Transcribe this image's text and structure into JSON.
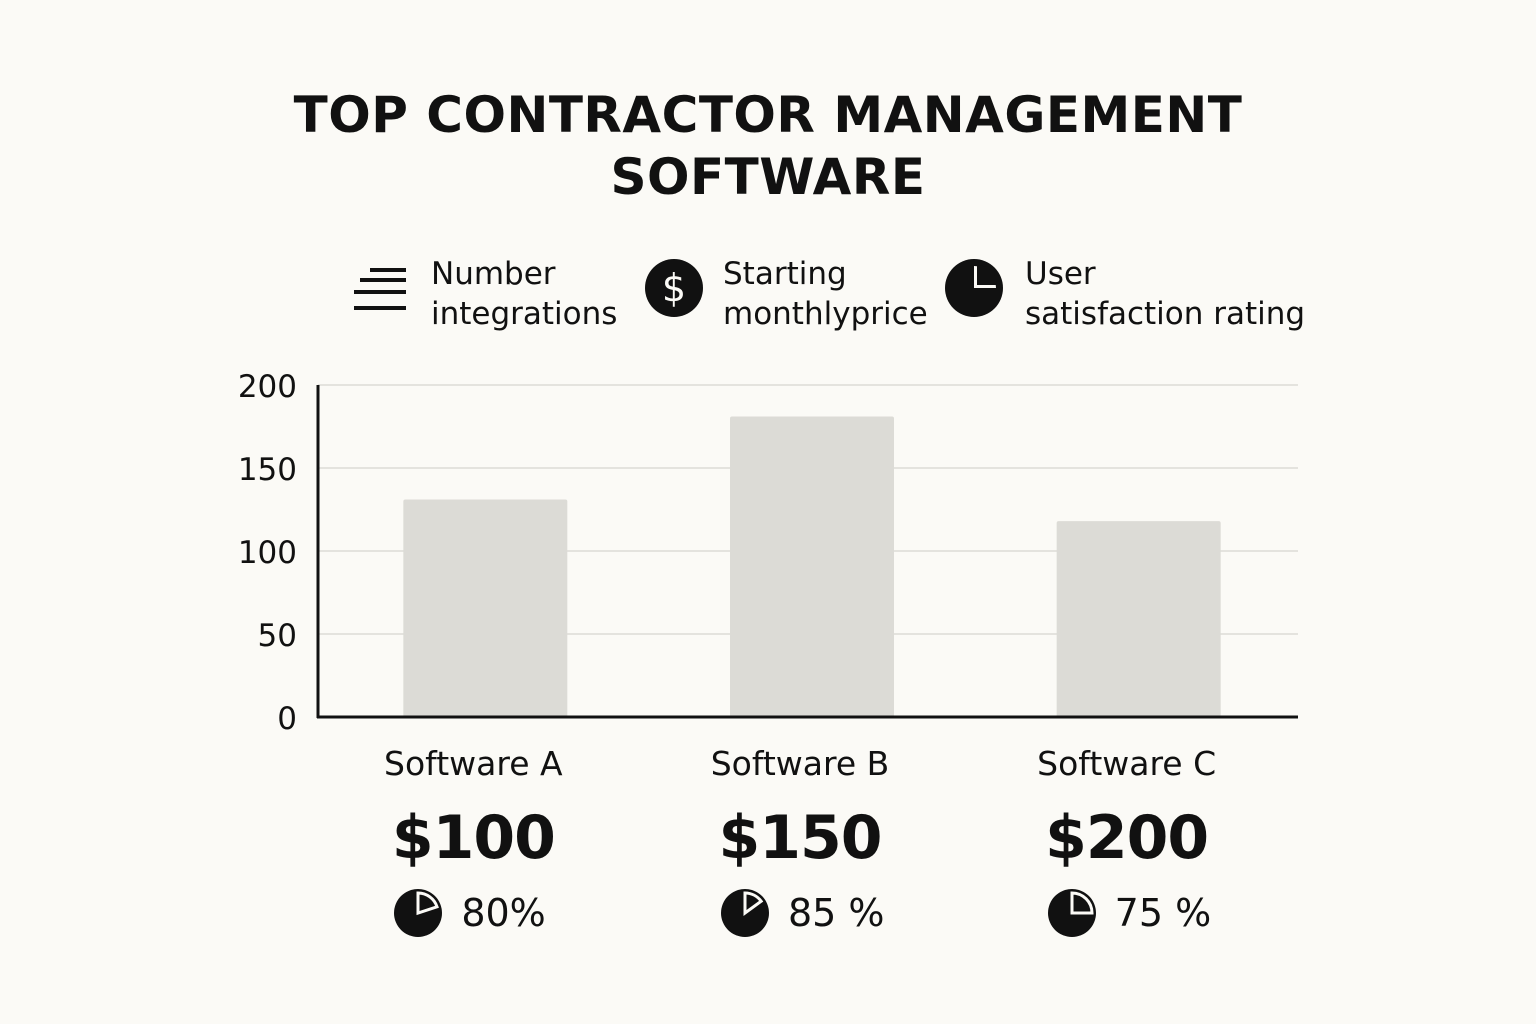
{
  "title_line1": "TOP CONTRACTOR MANAGEMENT",
  "title_line2": "SOFTWARE",
  "legend": [
    {
      "icon": "lines-icon",
      "line1": "Number",
      "line2": "integrations"
    },
    {
      "icon": "dollar-icon",
      "line1": "Starting",
      "line2": "monthlyprice"
    },
    {
      "icon": "pie-icon",
      "line1": "User",
      "line2": "satisfaction rating"
    }
  ],
  "colors": {
    "bar": "#dcdbd6",
    "grid": "#e4e3de",
    "axis": "#111111",
    "background": "#fbfaf6"
  },
  "chart_data": {
    "type": "bar",
    "categories": [
      "Software A",
      "Software B",
      "Software C"
    ],
    "values": [
      131,
      181,
      118
    ],
    "ylim": [
      0,
      200
    ],
    "yticks": [
      0,
      50,
      100,
      150,
      200
    ],
    "grid": true
  },
  "items": [
    {
      "price": "$100",
      "rating_value": 0.8,
      "rating": "80%"
    },
    {
      "price": "$150",
      "rating_value": 0.85,
      "rating": "85 %"
    },
    {
      "price": "$200",
      "rating_value": 0.75,
      "rating": "75 %"
    }
  ]
}
